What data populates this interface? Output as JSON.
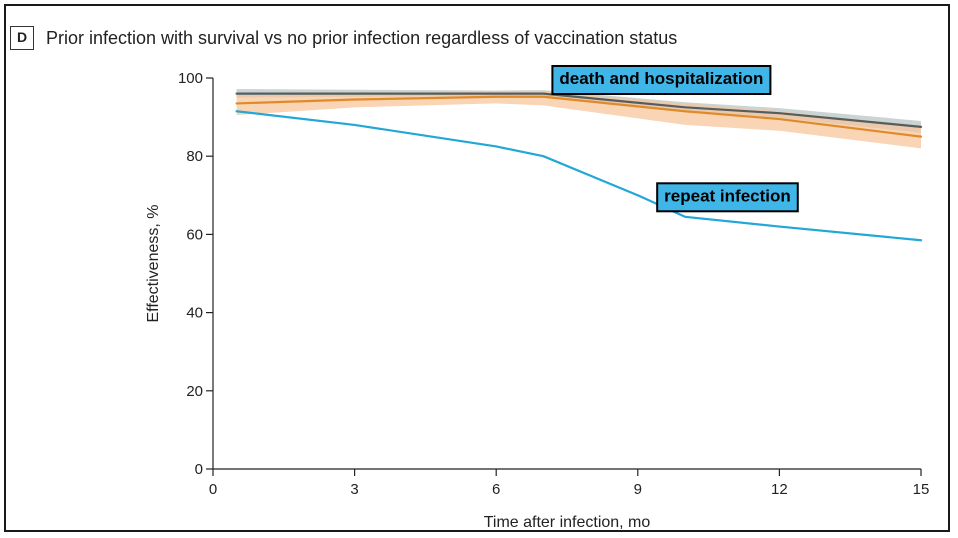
{
  "panel": {
    "letter": "D",
    "title": "Prior infection with survival vs no prior infection regardless of vaccination status"
  },
  "chart_data": {
    "type": "line",
    "xlabel": "Time after infection, mo",
    "ylabel": "Effectiveness, %",
    "xlim": [
      0,
      15
    ],
    "ylim": [
      0,
      100
    ],
    "xticks": [
      0,
      3,
      6,
      9,
      12,
      15
    ],
    "yticks": [
      0,
      20,
      40,
      60,
      80,
      100
    ],
    "grid": false,
    "annotations": [
      {
        "text": "death and hospitalization",
        "x": 9.5,
        "y": 100
      },
      {
        "text": "repeat infection",
        "x": 10.9,
        "y": 70
      }
    ],
    "series": [
      {
        "color": "#555e5e",
        "band_color": "#b9c4c4",
        "x": [
          0.5,
          3,
          6,
          7,
          10,
          12,
          15
        ],
        "y": [
          96.0,
          96.0,
          96.0,
          96.0,
          92.5,
          91.0,
          87.5
        ],
        "lower": [
          95.0,
          95.2,
          95.4,
          95.2,
          91.3,
          89.8,
          86.0
        ],
        "upper": [
          97.2,
          97.0,
          96.8,
          96.9,
          93.8,
          92.3,
          89.0
        ]
      },
      {
        "color": "#e08a2a",
        "band_color": "#f7c69c",
        "x": [
          0.5,
          3,
          6,
          7,
          10,
          12,
          15
        ],
        "y": [
          93.5,
          94.5,
          95.2,
          95.2,
          91.5,
          89.5,
          85.0
        ],
        "lower": [
          90.5,
          92.5,
          93.5,
          93.0,
          88.0,
          86.5,
          82.0
        ],
        "upper": [
          95.5,
          96.0,
          96.5,
          96.5,
          93.5,
          91.5,
          87.5
        ]
      },
      {
        "color": "#22a7d6",
        "x": [
          0.5,
          3,
          6,
          7,
          8,
          9,
          10,
          12,
          15
        ],
        "y": [
          91.5,
          88.0,
          82.5,
          80.0,
          75.0,
          70.0,
          64.5,
          62.0,
          58.5
        ]
      }
    ]
  }
}
